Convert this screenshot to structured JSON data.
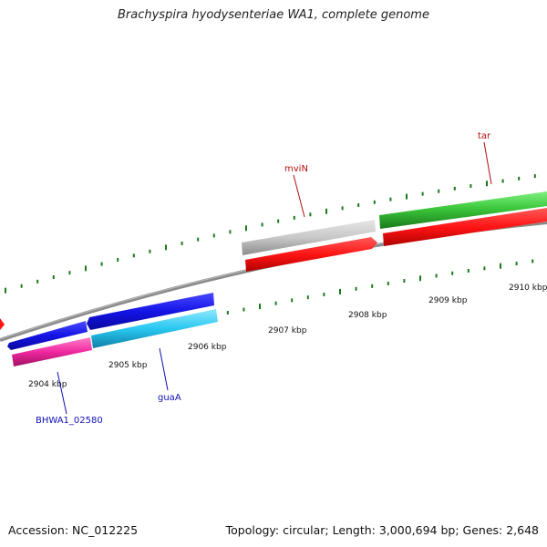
{
  "title": "Brachyspira hyodysenteriae WA1, complete genome",
  "footer": {
    "accession": "Accession: NC_012225",
    "stats": "Topology: circular; Length: 3,000,694 bp; Genes: 2,648"
  },
  "colors": {
    "backbone": "#8a8a8a",
    "tick": "#1a7a1a",
    "gene_label_red": "#b01010",
    "gene_label_blue": "#1010b0"
  },
  "ticks": [
    {
      "label": "2904 kbp"
    },
    {
      "label": "2905 kbp"
    },
    {
      "label": "2906 kbp"
    },
    {
      "label": "2907 kbp"
    },
    {
      "label": "2908 kbp"
    },
    {
      "label": "2909 kbp"
    },
    {
      "label": "2910 kbp"
    }
  ],
  "gene_labels": [
    {
      "name": "mviN",
      "color": "#b01010"
    },
    {
      "name": "tar",
      "color": "#b01010"
    },
    {
      "name": "guaA",
      "color": "#1010b0"
    },
    {
      "name": "BHWA1_02580",
      "color": "#1010b0"
    }
  ],
  "features": [
    {
      "name": "forward-feature-gray",
      "color": "#c8c8c8"
    },
    {
      "name": "forward-feature-green",
      "color": "#3cc83c"
    },
    {
      "name": "forward-feature-blue-1",
      "color": "#1414e6"
    },
    {
      "name": "forward-feature-blue-2",
      "color": "#1414e6"
    },
    {
      "name": "reverse-feature-red-1",
      "color": "#ff1414"
    },
    {
      "name": "reverse-feature-red-2",
      "color": "#ff1414"
    },
    {
      "name": "reverse-feature-cyan",
      "color": "#28c8f0"
    },
    {
      "name": "reverse-feature-magenta",
      "color": "#f028a0"
    }
  ]
}
